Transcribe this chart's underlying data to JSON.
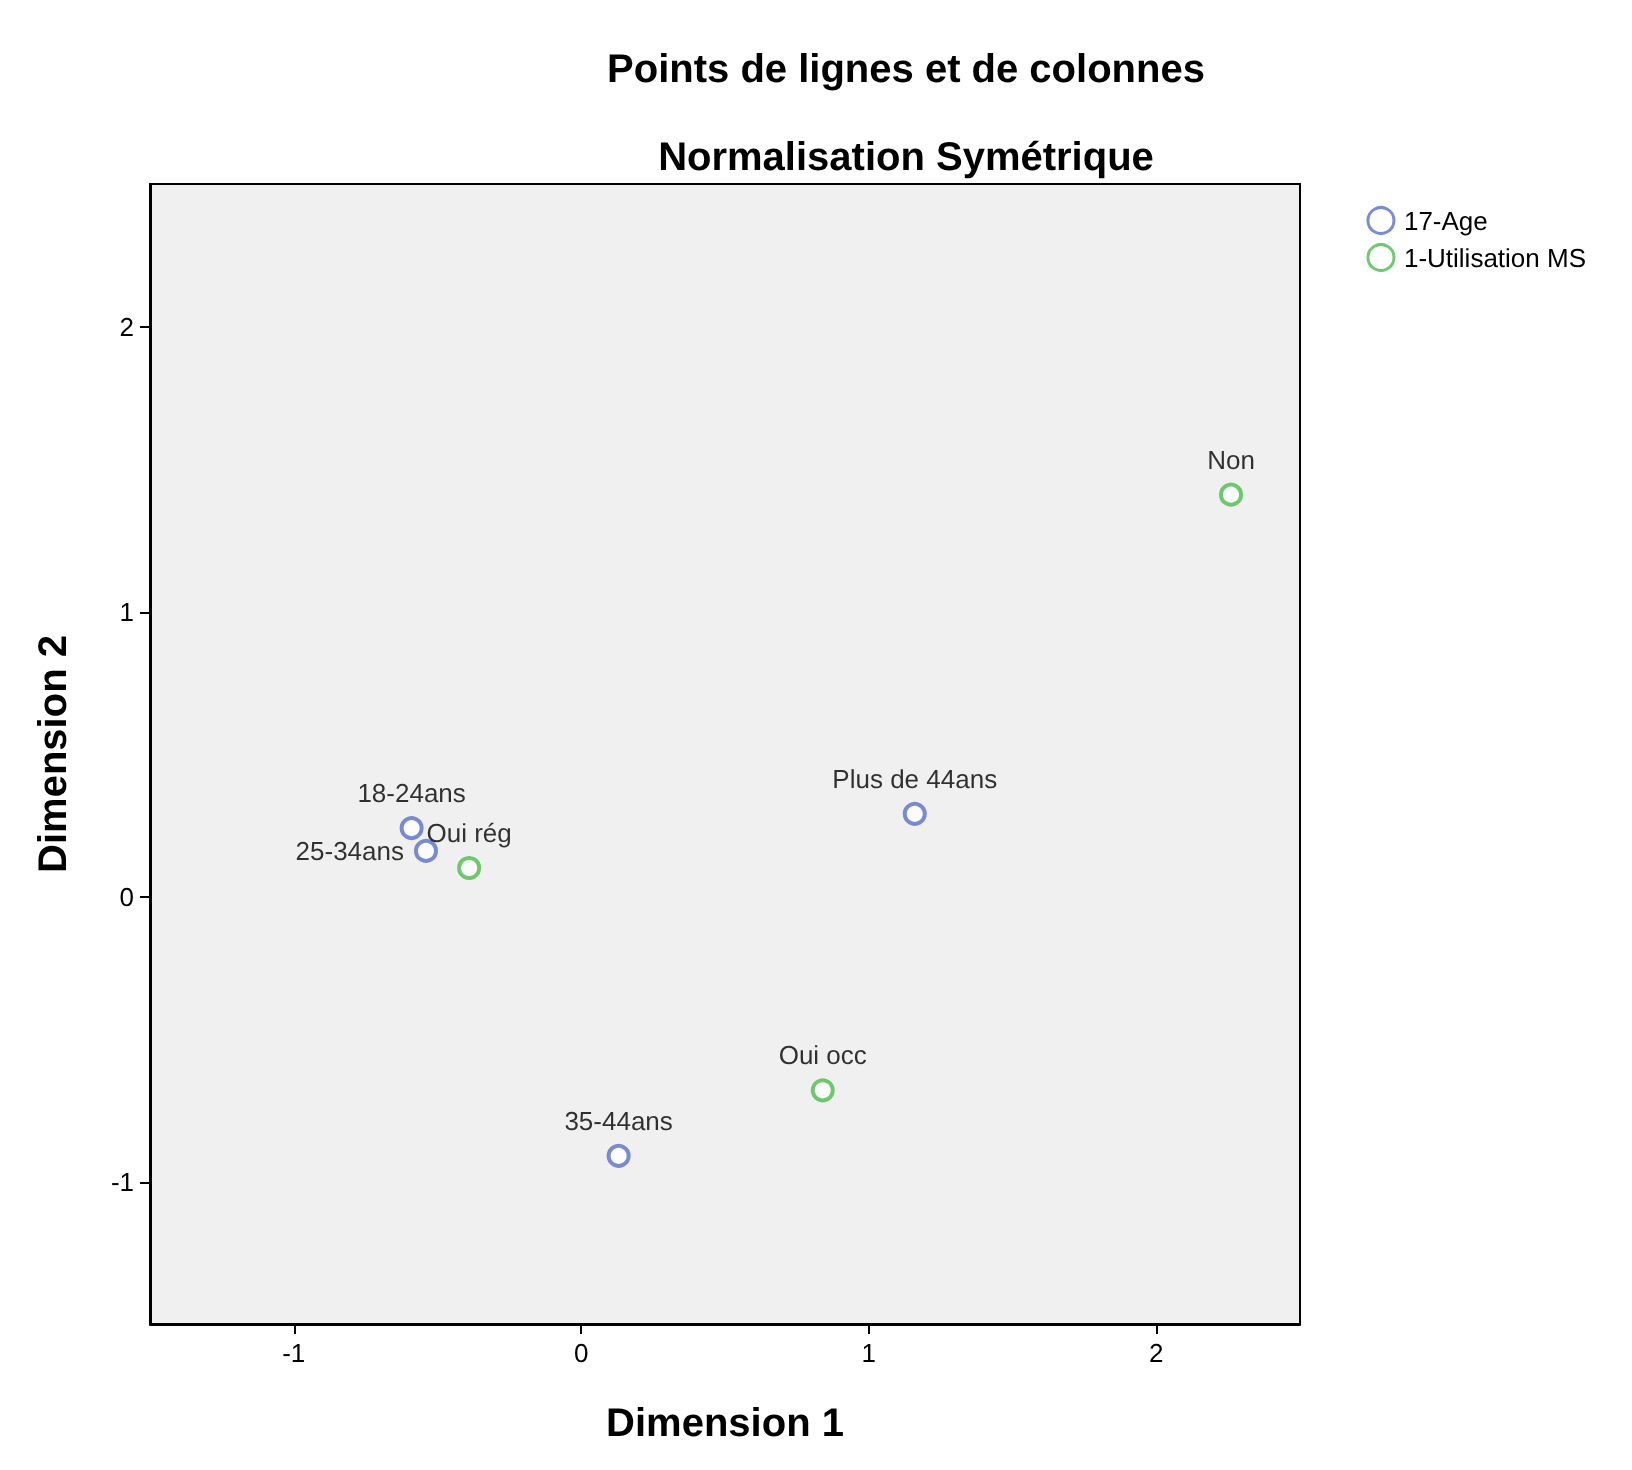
{
  "chart_data": {
    "type": "scatter",
    "title": "Points de lignes et de colonnes",
    "subtitle": "Normalisation Symétrique",
    "xlabel": "Dimension 1",
    "ylabel": "Dimension 2",
    "series": [
      {
        "name": "17-Age",
        "color": "#5b6fc4",
        "x": [
          -0.59,
          -0.54,
          1.16,
          0.13
        ],
        "values": [
          0.24,
          0.16,
          0.29,
          -0.91
        ],
        "value_labels": [
          "18-24ans",
          "25-34ans",
          "Plus de 44ans",
          "35-44ans"
        ]
      },
      {
        "name": "1-Utilisation MS",
        "color": "#4cbb4c",
        "x": [
          -0.39,
          0.84,
          2.26
        ],
        "values": [
          0.1,
          -0.68,
          1.41
        ],
        "value_labels": [
          "Oui rég",
          "Oui occ",
          "Non"
        ]
      }
    ],
    "xlim": [
      -1.5,
      2.5
    ],
    "ylim": [
      -1.5,
      2.5
    ],
    "xticks": [
      -1,
      0,
      1,
      2
    ],
    "yticks": [
      -1,
      0,
      1,
      2
    ],
    "grid": false,
    "legend": "top right",
    "marker": "circle"
  }
}
